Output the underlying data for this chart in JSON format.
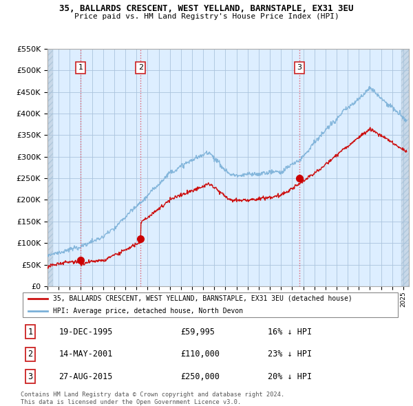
{
  "title": "35, BALLARDS CRESCENT, WEST YELLAND, BARNSTAPLE, EX31 3EU",
  "subtitle": "Price paid vs. HM Land Registry's House Price Index (HPI)",
  "ylim": [
    0,
    550000
  ],
  "yticks": [
    0,
    50000,
    100000,
    150000,
    200000,
    250000,
    300000,
    350000,
    400000,
    450000,
    500000,
    550000
  ],
  "xlim_start": 1993.0,
  "xlim_end": 2025.5,
  "sale_dates": [
    1995.97,
    2001.37,
    2015.65
  ],
  "sale_prices": [
    59995,
    110000,
    250000
  ],
  "sale_labels": [
    "1",
    "2",
    "3"
  ],
  "sale_vline_color": "#e05060",
  "sale_dot_color": "#cc0000",
  "hpi_color": "#7ab0d8",
  "sold_line_color": "#cc1111",
  "legend_label_sold": "35, BALLARDS CRESCENT, WEST YELLAND, BARNSTAPLE, EX31 3EU (detached house)",
  "legend_label_hpi": "HPI: Average price, detached house, North Devon",
  "table_rows": [
    [
      "1",
      "19-DEC-1995",
      "£59,995",
      "16% ↓ HPI"
    ],
    [
      "2",
      "14-MAY-2001",
      "£110,000",
      "23% ↓ HPI"
    ],
    [
      "3",
      "27-AUG-2015",
      "£250,000",
      "20% ↓ HPI"
    ]
  ],
  "footer": "Contains HM Land Registry data © Crown copyright and database right 2024.\nThis data is licensed under the Open Government Licence v3.0.",
  "bg_plot_color": "#ddeeff",
  "bg_hatch_color": "#c8d8e8",
  "grid_color": "#aac4dd"
}
